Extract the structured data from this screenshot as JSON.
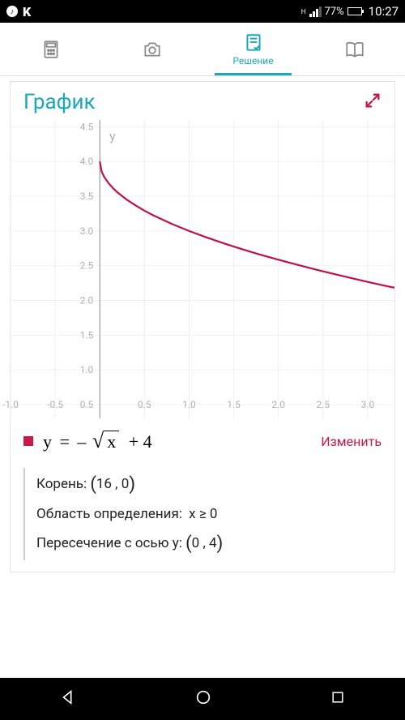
{
  "status": {
    "k_label": "K",
    "network_indicator": "H",
    "battery_pct": "77%",
    "battery_fill_pct": 77,
    "time": "10:27"
  },
  "tabs": {
    "active_label": "Решение"
  },
  "card": {
    "title": "График"
  },
  "chart": {
    "type": "line",
    "xlim": [
      -1.0,
      3.3
    ],
    "ylim": [
      0.3,
      4.6
    ],
    "xticks": [
      -1.0,
      -0.5,
      0.5,
      1.0,
      1.5,
      2.0,
      2.5,
      3.0
    ],
    "yticks": [
      0.5,
      1.0,
      1.5,
      2.0,
      2.5,
      3.0,
      3.5,
      4.0,
      4.5
    ],
    "xtick_labels": [
      "-1.0",
      "-0.5",
      "0.5",
      "1.0",
      "1.5",
      "2.0",
      "2.5",
      "3.0"
    ],
    "ytick_labels": [
      "0.5",
      "1.0",
      "1.5",
      "2.0",
      "2.5",
      "3.0",
      "3.5",
      "4.0",
      "4.5"
    ],
    "y_axis_x": 0,
    "y_label": "y",
    "grid_color": "#f0f0f0",
    "tick_label_color": "#b0b0b0",
    "tick_fontsize": 12,
    "axis_color": "#888888",
    "curve_color": "#c01048",
    "curve_width": 2.2,
    "background_color": "#ffffff",
    "curve_points": [
      [
        0.0,
        4.0
      ],
      [
        0.02,
        3.859
      ],
      [
        0.05,
        3.776
      ],
      [
        0.1,
        3.684
      ],
      [
        0.15,
        3.613
      ],
      [
        0.2,
        3.553
      ],
      [
        0.3,
        3.452
      ],
      [
        0.4,
        3.368
      ],
      [
        0.5,
        3.293
      ],
      [
        0.6,
        3.225
      ],
      [
        0.8,
        3.106
      ],
      [
        1.0,
        3.0
      ],
      [
        1.2,
        2.905
      ],
      [
        1.4,
        2.817
      ],
      [
        1.6,
        2.735
      ],
      [
        1.8,
        2.658
      ],
      [
        2.0,
        2.586
      ],
      [
        2.2,
        2.517
      ],
      [
        2.4,
        2.451
      ],
      [
        2.6,
        2.388
      ],
      [
        2.8,
        2.327
      ],
      [
        3.0,
        2.268
      ],
      [
        3.2,
        2.211
      ],
      [
        3.3,
        2.184
      ]
    ]
  },
  "equation": {
    "lhs": "y",
    "eq": "=",
    "sign": "–",
    "radicand": "x",
    "tail": "+ 4",
    "edit_label": "Изменить"
  },
  "results": {
    "root_label": "Корень:",
    "root_value": "16 , 0",
    "domain_label": "Область определения:",
    "domain_value": "x ≥ 0",
    "yint_label": "Пересечение с осью y:",
    "yint_value": "0 , 4"
  }
}
